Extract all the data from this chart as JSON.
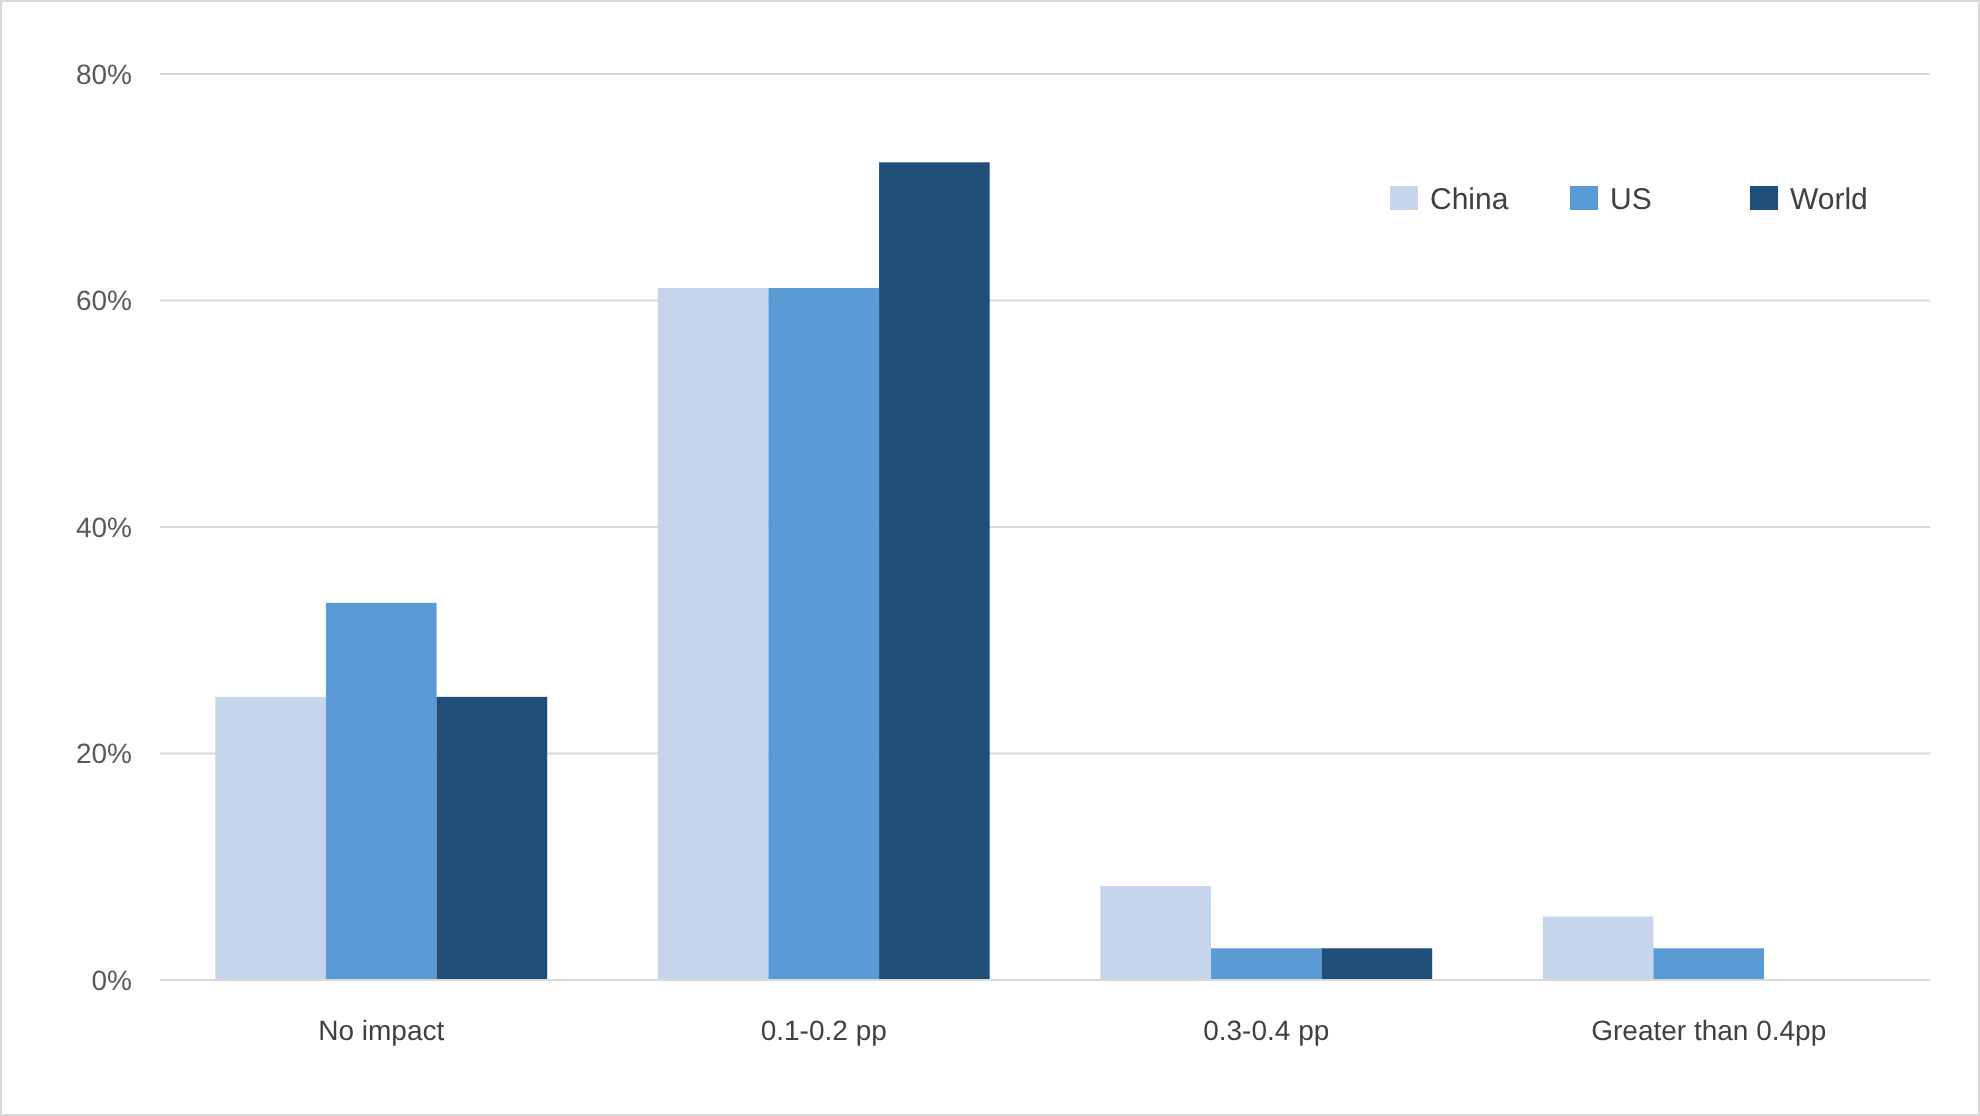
{
  "chart_data": {
    "type": "bar",
    "categories": [
      "No impact",
      "0.1-0.2 pp",
      "0.3-0.4 pp",
      "Greater than 0.4pp"
    ],
    "series": [
      {
        "name": "China",
        "color": "#c6d5ec",
        "values": [
          25,
          61.1,
          8.3,
          5.6
        ]
      },
      {
        "name": "US",
        "color": "#5b9bd5",
        "values": [
          33.3,
          61.1,
          2.8,
          2.8
        ]
      },
      {
        "name": "World",
        "color": "#1f4e79",
        "values": [
          25,
          72.2,
          2.8,
          0
        ]
      }
    ],
    "ylim": [
      0,
      80
    ],
    "yticks": [
      {
        "value": 0,
        "label": "0%"
      },
      {
        "value": 20,
        "label": "20%"
      },
      {
        "value": 40,
        "label": "40%"
      },
      {
        "value": 60,
        "label": "60%"
      },
      {
        "value": 80,
        "label": "80%"
      }
    ],
    "grid": "y",
    "legend": "top right"
  }
}
